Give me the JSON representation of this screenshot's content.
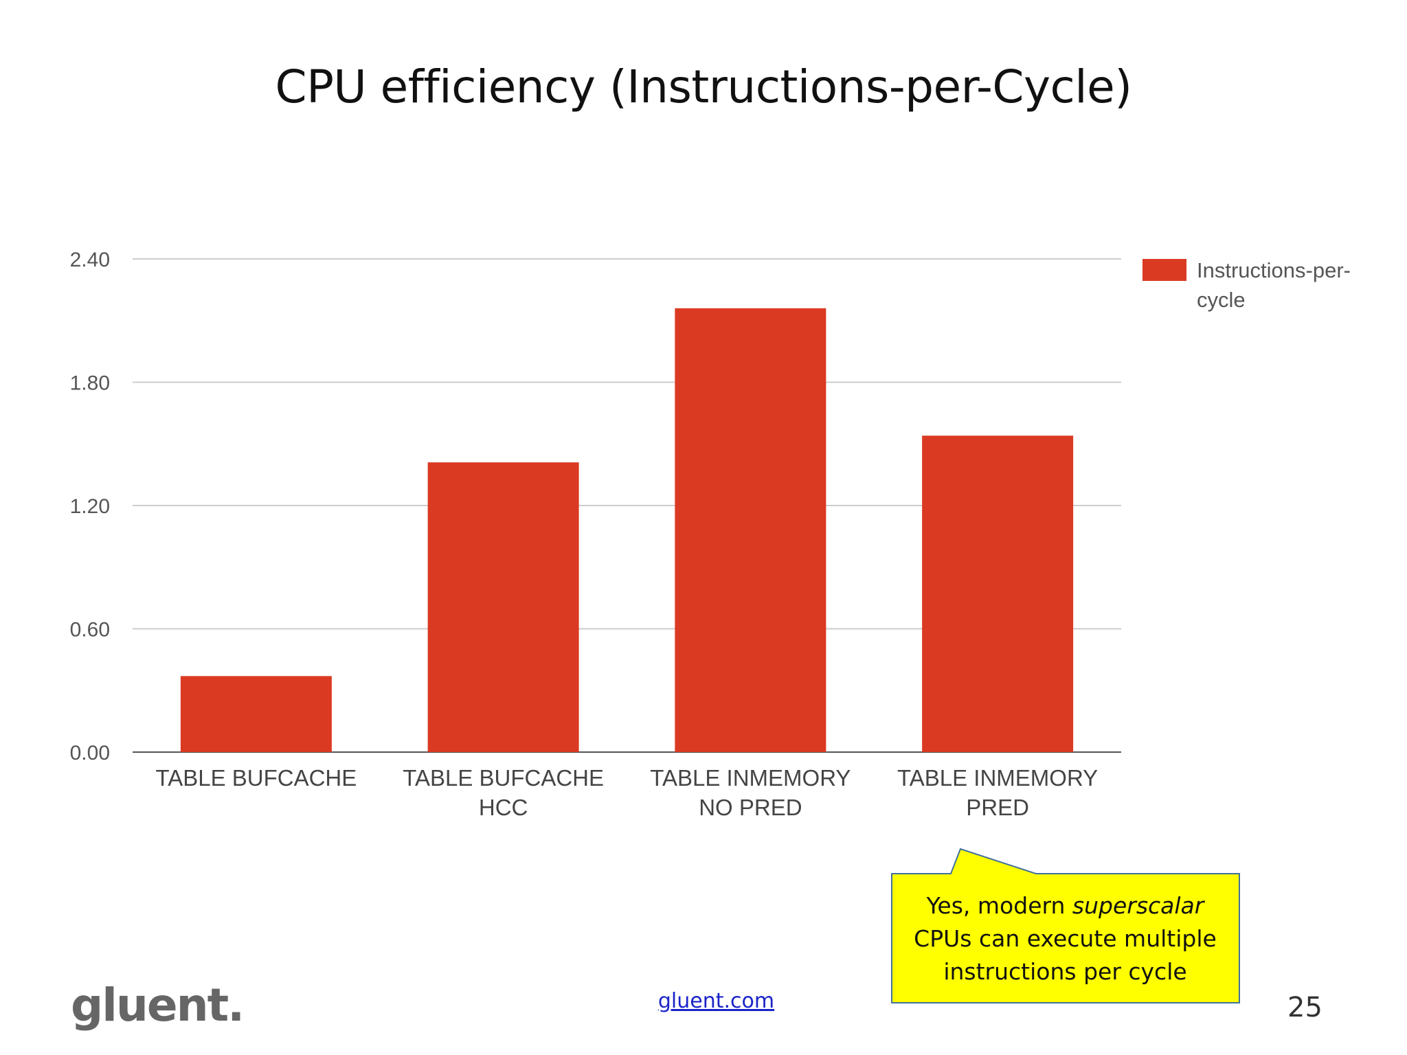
{
  "slide": {
    "title": "CPU efficiency (Instructions-per-Cycle)",
    "logo": "gluent.",
    "link": "gluent.com",
    "page_number": "25"
  },
  "callout": {
    "line1_prefix": "Yes, modern ",
    "line1_emphasis": "superscalar",
    "line2": "CPUs can execute multiple",
    "line3": "instructions per cycle",
    "fill_color": "#ffff00",
    "border_color": "#41719c"
  },
  "chart_data": {
    "type": "bar",
    "categories": [
      [
        "TABLE BUFCACHE"
      ],
      [
        "TABLE BUFCACHE",
        "HCC"
      ],
      [
        "TABLE INMEMORY",
        "NO PRED"
      ],
      [
        "TABLE INMEMORY",
        "PRED"
      ]
    ],
    "series": [
      {
        "name": "Instructions-per-cycle",
        "legend_lines": [
          "Instructions-per-",
          "cycle"
        ],
        "color": "#db3a22",
        "values": [
          0.37,
          1.41,
          2.16,
          1.54
        ]
      }
    ],
    "yticks": [
      "0.00",
      "0.60",
      "1.20",
      "1.80",
      "2.40"
    ],
    "ylim": [
      0,
      2.4
    ],
    "grid": true,
    "legend_position": "right"
  }
}
